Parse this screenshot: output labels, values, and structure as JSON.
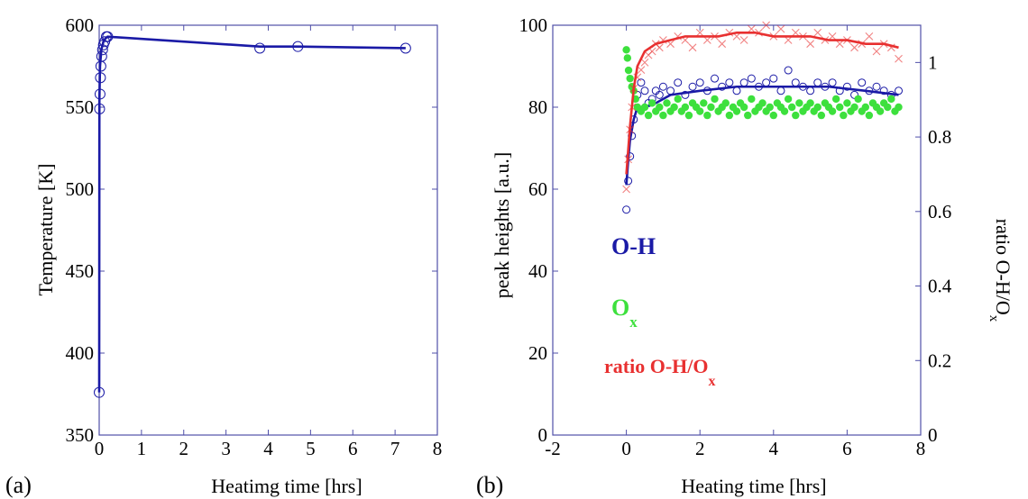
{
  "colors": {
    "blue": "#1a1aa6",
    "green": "#3de03d",
    "red": "#e83030",
    "axis": "#4f4fa8"
  },
  "chart_data": [
    {
      "type": "line",
      "panel_label": "(a)",
      "xlabel": "Heatimg time [hrs]",
      "ylabel": "Temperature [K]",
      "xlim": [
        0,
        8
      ],
      "ylim": [
        350,
        600
      ],
      "xticks": [
        "0",
        "1",
        "2",
        "3",
        "4",
        "5",
        "6",
        "7",
        "8"
      ],
      "yticks": [
        "350",
        "400",
        "450",
        "500",
        "550",
        "600"
      ],
      "series": [
        {
          "color": "#1a1aa6",
          "marker": "circle",
          "x": [
            0.0,
            0.01,
            0.02,
            0.03,
            0.04,
            0.06,
            0.08,
            0.1,
            0.13,
            0.17,
            0.2,
            3.8,
            4.7,
            7.25
          ],
          "y": [
            376,
            549,
            558,
            568,
            575,
            581,
            585,
            588,
            590,
            593,
            593,
            586,
            587,
            586
          ],
          "line_x": [
            0.0,
            0.005,
            0.02,
            0.05,
            0.1,
            0.15,
            0.2,
            3.8,
            4.7,
            7.25
          ],
          "line_y": [
            376,
            555,
            575,
            585,
            590,
            592,
            593,
            587,
            587,
            586
          ]
        }
      ]
    },
    {
      "type": "scatter",
      "panel_label": "(b)",
      "xlabel": "Heating time [hrs]",
      "ylabel": "peak heights [a.u.]",
      "ylabel_right": "ratio O-H/O",
      "ylabel_right_sub": "x",
      "xlim": [
        -2,
        8
      ],
      "ylim": [
        0,
        100
      ],
      "ylim_right": [
        0,
        1.1
      ],
      "xticks": [
        "-2",
        "0",
        "2",
        "4",
        "6",
        "8"
      ],
      "yticks": [
        "0",
        "20",
        "40",
        "60",
        "80",
        "100"
      ],
      "yticks_right": [
        "0",
        "0.2",
        "0.4",
        "0.6",
        "0.8",
        "1"
      ],
      "legend": [
        {
          "label": "O-H",
          "sub": "",
          "color": "#1a1aa6"
        },
        {
          "label": "O",
          "sub": "x",
          "color": "#3de03d"
        },
        {
          "label": "ratio O-H/O",
          "sub": "x",
          "color": "#e83030"
        }
      ],
      "series": [
        {
          "color": "#1a1aa6",
          "marker": "circle",
          "axis": "left",
          "points_x": [
            0.0,
            0.05,
            0.1,
            0.15,
            0.2,
            0.3,
            0.4,
            0.5,
            0.6,
            0.7,
            0.8,
            0.9,
            1.0,
            1.2,
            1.4,
            1.6,
            1.8,
            2.0,
            2.2,
            2.4,
            2.6,
            2.8,
            3.0,
            3.2,
            3.4,
            3.6,
            3.8,
            4.0,
            4.2,
            4.4,
            4.6,
            4.8,
            5.0,
            5.2,
            5.4,
            5.6,
            5.8,
            6.0,
            6.2,
            6.4,
            6.6,
            6.8,
            7.0,
            7.2,
            7.4
          ],
          "points_y": [
            55,
            62,
            68,
            73,
            77,
            83,
            86,
            84,
            81,
            82,
            84,
            83,
            85,
            84,
            86,
            83,
            85,
            86,
            84,
            87,
            85,
            86,
            84,
            86,
            87,
            85,
            86,
            87,
            84,
            89,
            86,
            85,
            84,
            86,
            85,
            86,
            84,
            85,
            83,
            86,
            84,
            85,
            84,
            83,
            84
          ],
          "line_x": [
            0.0,
            0.05,
            0.1,
            0.2,
            0.3,
            0.5,
            0.8,
            1.2,
            2.0,
            3.0,
            3.8,
            4.5,
            5.5,
            6.5,
            7.4
          ],
          "line_y": [
            61,
            67,
            72,
            77,
            80,
            80,
            81,
            83,
            84,
            85,
            85,
            85,
            85,
            84,
            83
          ]
        },
        {
          "color": "#3de03d",
          "marker": "dot",
          "axis": "left",
          "points_x": [
            0.0,
            0.03,
            0.06,
            0.1,
            0.15,
            0.2,
            0.25,
            0.3,
            0.4,
            0.5,
            0.6,
            0.7,
            0.8,
            0.9,
            1.0,
            1.1,
            1.2,
            1.3,
            1.4,
            1.5,
            1.6,
            1.7,
            1.8,
            1.9,
            2.0,
            2.1,
            2.2,
            2.3,
            2.4,
            2.5,
            2.6,
            2.7,
            2.8,
            2.9,
            3.0,
            3.1,
            3.2,
            3.3,
            3.4,
            3.5,
            3.6,
            3.7,
            3.8,
            3.9,
            4.0,
            4.1,
            4.2,
            4.3,
            4.4,
            4.5,
            4.6,
            4.7,
            4.8,
            4.9,
            5.0,
            5.1,
            5.2,
            5.3,
            5.4,
            5.5,
            5.6,
            5.7,
            5.8,
            5.9,
            6.0,
            6.1,
            6.2,
            6.3,
            6.4,
            6.5,
            6.6,
            6.7,
            6.8,
            6.9,
            7.0,
            7.1,
            7.2,
            7.3,
            7.4
          ],
          "points_y": [
            94,
            92,
            89,
            87,
            85,
            84,
            82,
            80,
            79,
            80,
            78,
            81,
            79,
            80,
            78,
            81,
            79,
            80,
            82,
            79,
            80,
            78,
            81,
            80,
            79,
            81,
            78,
            80,
            82,
            79,
            80,
            81,
            78,
            80,
            79,
            81,
            80,
            78,
            82,
            79,
            80,
            81,
            79,
            80,
            78,
            81,
            80,
            79,
            82,
            80,
            78,
            81,
            79,
            80,
            81,
            79,
            80,
            78,
            81,
            80,
            79,
            82,
            80,
            78,
            81,
            79,
            80,
            82,
            79,
            80,
            78,
            81,
            80,
            79,
            81,
            80,
            82,
            79,
            80
          ]
        },
        {
          "color": "#e83030",
          "marker": "cross",
          "axis": "right",
          "points_x": [
            0.0,
            0.05,
            0.1,
            0.15,
            0.2,
            0.3,
            0.4,
            0.5,
            0.6,
            0.7,
            0.8,
            0.9,
            1.0,
            1.2,
            1.4,
            1.6,
            1.8,
            2.0,
            2.2,
            2.4,
            2.6,
            2.8,
            3.0,
            3.2,
            3.4,
            3.6,
            3.8,
            4.0,
            4.2,
            4.4,
            4.6,
            4.8,
            5.0,
            5.2,
            5.4,
            5.6,
            5.8,
            6.0,
            6.2,
            6.4,
            6.6,
            6.8,
            7.0,
            7.2,
            7.4
          ],
          "points_y": [
            0.66,
            0.74,
            0.82,
            0.88,
            0.93,
            0.96,
            0.98,
            1.0,
            1.02,
            1.03,
            1.05,
            1.04,
            1.06,
            1.05,
            1.07,
            1.06,
            1.04,
            1.08,
            1.06,
            1.07,
            1.05,
            1.08,
            1.07,
            1.06,
            1.09,
            1.08,
            1.1,
            1.07,
            1.09,
            1.06,
            1.08,
            1.07,
            1.05,
            1.08,
            1.06,
            1.07,
            1.05,
            1.06,
            1.04,
            1.05,
            1.07,
            1.03,
            1.05,
            1.04,
            1.01
          ],
          "line_x": [
            0.0,
            0.1,
            0.2,
            0.3,
            0.5,
            0.8,
            1.2,
            1.6,
            2.0,
            2.5,
            3.0,
            3.5,
            4.0,
            4.5,
            5.0,
            5.5,
            6.0,
            6.5,
            7.0,
            7.4
          ],
          "line_y": [
            0.7,
            0.83,
            0.93,
            0.99,
            1.03,
            1.05,
            1.06,
            1.07,
            1.07,
            1.07,
            1.08,
            1.08,
            1.07,
            1.07,
            1.07,
            1.06,
            1.06,
            1.05,
            1.05,
            1.04
          ]
        }
      ]
    }
  ]
}
